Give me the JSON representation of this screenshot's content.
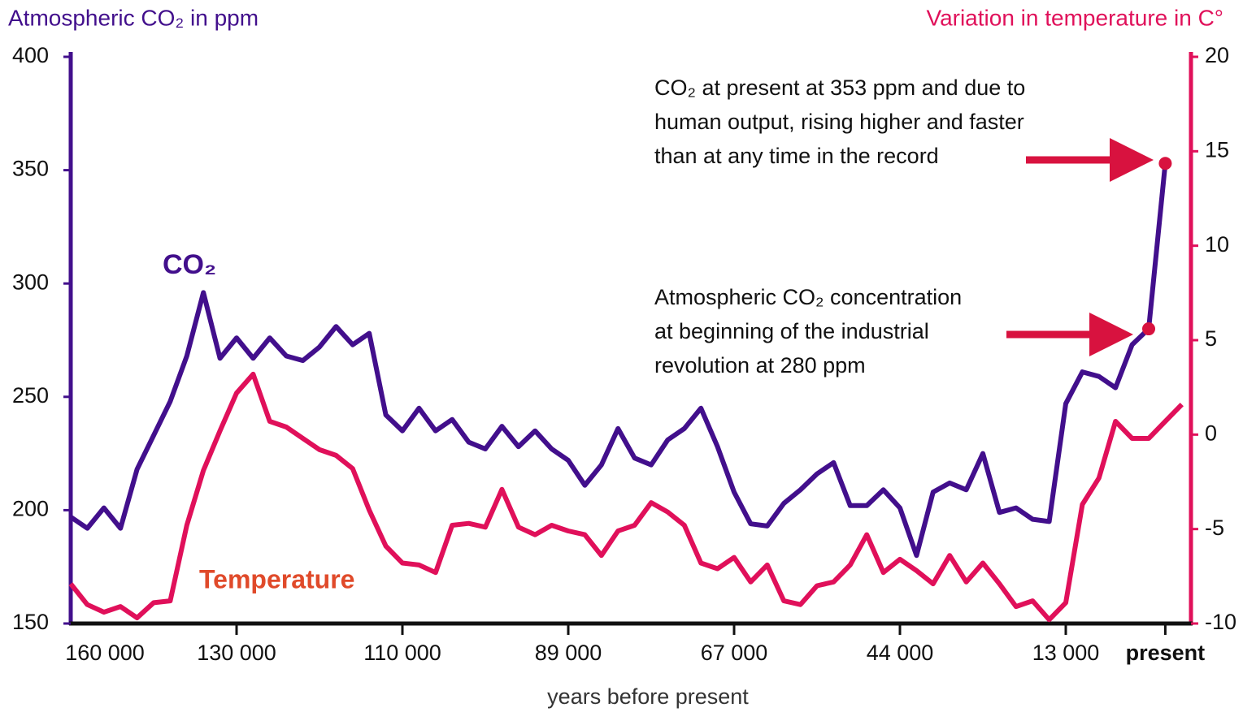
{
  "chart_data": {
    "type": "line",
    "y_label": "Atmospheric CO₂ in ppm",
    "y2_label": "Variation in temperature in C°",
    "x_label": "years before present",
    "categories": [
      "160 000",
      null,
      null,
      null,
      null,
      null,
      null,
      null,
      null,
      null,
      "130 000",
      null,
      null,
      null,
      null,
      null,
      null,
      null,
      null,
      null,
      "110 000",
      null,
      null,
      null,
      null,
      null,
      null,
      null,
      null,
      null,
      "89 000",
      null,
      null,
      null,
      null,
      null,
      null,
      null,
      null,
      null,
      "67 000",
      null,
      null,
      null,
      null,
      null,
      null,
      null,
      null,
      null,
      "44 000",
      null,
      null,
      null,
      null,
      null,
      null,
      null,
      null,
      null,
      "13 000",
      null,
      null,
      null,
      null,
      null,
      "present",
      null
    ],
    "ylim": [
      150,
      400
    ],
    "yticks": [
      150,
      200,
      250,
      300,
      350,
      400
    ],
    "y2lim": [
      -10,
      20
    ],
    "y2ticks": [
      -10,
      -5,
      0,
      5,
      10,
      15,
      20
    ],
    "series": [
      {
        "name": "CO₂",
        "color": "#420f8c",
        "values": [
          197,
          192,
          201,
          192,
          218,
          233,
          248,
          268,
          296,
          267,
          276,
          267,
          276,
          268,
          266,
          272,
          281,
          273,
          278,
          242,
          235,
          245,
          235,
          240,
          230,
          227,
          237,
          228,
          235,
          227,
          222,
          211,
          220,
          236,
          223,
          220,
          231,
          236,
          245,
          228,
          208,
          194,
          193,
          203,
          209,
          216,
          221,
          202,
          202,
          209,
          201,
          180,
          208,
          212,
          209,
          225,
          199,
          201,
          196,
          195,
          247,
          261,
          259,
          254,
          273,
          280,
          353,
          null
        ]
      },
      {
        "name": "Temperature",
        "color": "#e0105a",
        "axis": "y2",
        "values": [
          -7.9,
          -9.0,
          -9.4,
          -9.1,
          -9.7,
          -8.9,
          -8.8,
          -4.8,
          -1.9,
          0.2,
          2.2,
          3.2,
          0.7,
          0.4,
          -0.2,
          -0.8,
          -1.1,
          -1.8,
          -4.0,
          -5.9,
          -6.8,
          -6.9,
          -7.3,
          -4.8,
          -4.7,
          -4.9,
          -2.9,
          -4.9,
          -5.3,
          -4.8,
          -5.1,
          -5.3,
          -6.4,
          -5.1,
          -4.8,
          -3.6,
          -4.1,
          -4.8,
          -6.8,
          -7.1,
          -6.5,
          -7.8,
          -6.9,
          -8.8,
          -9.0,
          -8.0,
          -7.8,
          -6.9,
          -5.3,
          -7.3,
          -6.6,
          -7.2,
          -7.9,
          -6.4,
          -7.8,
          -6.8,
          -7.9,
          -9.1,
          -8.8,
          -9.8,
          -8.9,
          -3.7,
          -2.3,
          0.7,
          -0.2,
          -0.2,
          0.7,
          1.6
        ]
      }
    ],
    "annotations": [
      {
        "lines": [
          "CO₂ at present at 353 ppm and due to",
          "human output, rising higher and faster",
          "than at any time in the record"
        ]
      },
      {
        "lines": [
          "Atmospheric CO₂ concentration",
          "at beginning of the industrial",
          "revolution at 280 ppm"
        ]
      }
    ]
  }
}
